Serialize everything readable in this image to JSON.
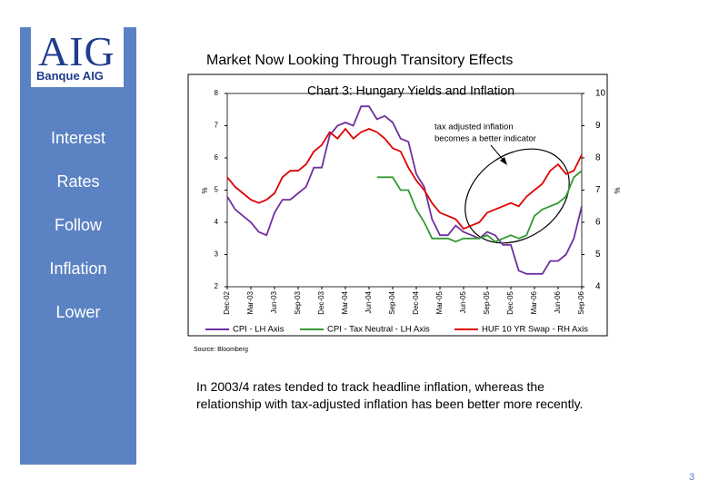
{
  "slide": {
    "logo": "AIG",
    "logo_subtitle": "Banque AIG",
    "title": "Market Now Looking Through Transitory Effects",
    "sidebar": [
      "Interest",
      "Rates",
      "Follow",
      "Inflation",
      "Lower"
    ],
    "body": [
      "In 2003/4 rates tended to track headline inflation, whereas the",
      "relationship with tax-adjusted inflation has been better more recently."
    ],
    "page_number": "3"
  },
  "chart_data": {
    "type": "line",
    "title": "Chart 3: Hungary Yields and Inflation",
    "annotation": [
      "tax adjusted inflation",
      "becomes a better indicator"
    ],
    "source": "Source: Bloomberg",
    "ylabel": "%",
    "y2label": "%",
    "categories": [
      "Dec-02",
      null,
      null,
      "Mar-03",
      null,
      null,
      "Jun-03",
      null,
      null,
      "Sep-03",
      null,
      null,
      "Dec-03",
      null,
      null,
      "Mar-04",
      null,
      null,
      "Jun-04",
      null,
      null,
      "Sep-04",
      null,
      null,
      "Dec-04",
      null,
      null,
      "Mar-05",
      null,
      null,
      "Jun-05",
      null,
      null,
      "Sep-05",
      null,
      null,
      "Dec-05",
      null,
      null,
      "Mar-06",
      null,
      null,
      "Jun-06",
      null,
      null,
      "Sep-06"
    ],
    "series": [
      {
        "name": "CPI - LH Axis",
        "color": "#7030a0",
        "values": [
          4.8,
          4.4,
          4.2,
          4.0,
          3.7,
          3.6,
          4.3,
          4.7,
          4.7,
          4.9,
          5.1,
          5.7,
          5.7,
          6.7,
          7.0,
          7.1,
          7.0,
          7.6,
          7.6,
          7.2,
          7.3,
          7.1,
          6.6,
          6.5,
          5.5,
          5.1,
          4.1,
          3.6,
          3.6,
          3.9,
          3.7,
          3.6,
          3.5,
          3.7,
          3.6,
          3.3,
          3.3,
          2.5,
          2.4,
          2.4,
          2.4,
          2.8,
          2.8,
          3.0,
          3.5,
          4.5
        ]
      },
      {
        "name": "CPI - Tax Neutral - LH Axis",
        "color": "#339933",
        "values": [
          null,
          null,
          null,
          null,
          null,
          null,
          null,
          null,
          null,
          null,
          null,
          null,
          null,
          null,
          null,
          null,
          null,
          null,
          null,
          5.4,
          5.4,
          5.4,
          5.0,
          5.0,
          4.4,
          4.0,
          3.5,
          3.5,
          3.5,
          3.4,
          3.5,
          3.5,
          3.5,
          3.6,
          3.4,
          3.5,
          3.6,
          3.5,
          3.6,
          4.2,
          4.4,
          4.5,
          4.6,
          4.8,
          5.4,
          5.6
        ]
      },
      {
        "name": "HUF 10 YR Swap - RH Axis",
        "color": "#e00000",
        "axis": "y2",
        "values": [
          7.4,
          7.1,
          6.9,
          6.7,
          6.6,
          6.7,
          6.9,
          7.4,
          7.6,
          7.6,
          7.8,
          8.2,
          8.4,
          8.8,
          8.6,
          8.9,
          8.6,
          8.8,
          8.9,
          8.8,
          8.6,
          8.3,
          8.2,
          7.7,
          7.3,
          7.0,
          6.6,
          6.3,
          6.2,
          6.1,
          5.8,
          5.9,
          6.0,
          6.3,
          6.4,
          6.5,
          6.6,
          6.5,
          6.8,
          7.0,
          7.2,
          7.6,
          7.8,
          7.5,
          7.6,
          8.1
        ]
      }
    ],
    "ylim": [
      2,
      8
    ],
    "yticks": [
      2,
      3,
      4,
      5,
      6,
      7,
      8
    ],
    "y2lim": [
      4,
      10
    ],
    "y2ticks": [
      4,
      5,
      6,
      7,
      8,
      9,
      10
    ]
  }
}
